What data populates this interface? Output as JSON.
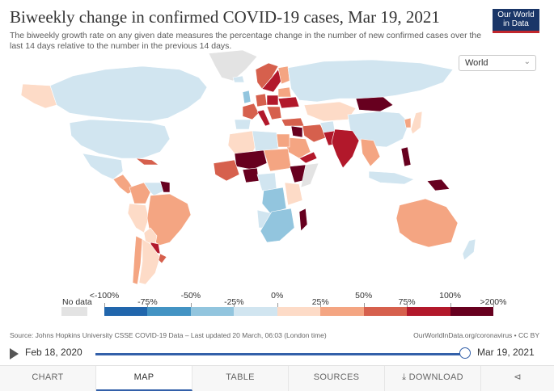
{
  "header": {
    "title": "Biweekly change in confirmed COVID-19 cases, Mar 19, 2021",
    "subtitle": "The biweekly growth rate on any given date measures the percentage change in the number of new confirmed cases over the last 14 days relative to the number in the previous 14 days.",
    "logo_line1": "Our World",
    "logo_line2": "in Data"
  },
  "entity_select": {
    "value": "World",
    "icon": "chevron-down-icon"
  },
  "colors": {
    "no_data": "#e3e3e3",
    "bins": [
      "#2166ac",
      "#4393c3",
      "#92c5de",
      "#d1e5f0",
      "#fddbc7",
      "#f4a582",
      "#d6604d",
      "#b2182b",
      "#67001f"
    ],
    "ocean": "#ffffff",
    "border": "#ffffff"
  },
  "legend": {
    "no_data_label": "No data",
    "labels": [
      "<-100%",
      "-75%",
      "-50%",
      "-25%",
      "0%",
      "25%",
      "50%",
      "75%",
      "100%",
      ">200%"
    ]
  },
  "footer": {
    "source": "Source: Johns Hopkins University CSSE COVID-19 Data – Last updated 20 March, 06:03 (London time)",
    "credit": "OurWorldInData.org/coronavirus • CC BY"
  },
  "timeline": {
    "start": "Feb 18, 2020",
    "end": "Mar 19, 2021",
    "progress": 1.0
  },
  "tabs": [
    "CHART",
    "MAP",
    "TABLE",
    "SOURCES",
    "DOWNLOAD"
  ],
  "active_tab": "MAP"
}
